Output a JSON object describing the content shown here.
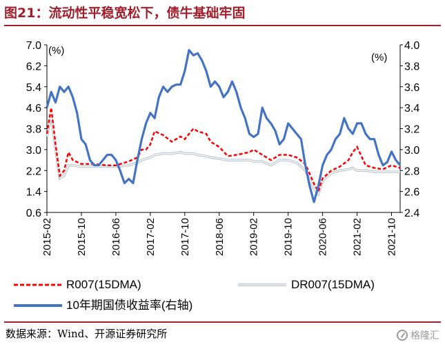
{
  "header": {
    "title": "图21：流动性平稳宽松下，债牛基础牢固"
  },
  "footer": {
    "source": "数据来源：Wind、开源证券研究所",
    "watermark": "格隆汇"
  },
  "colors": {
    "title": "#a11e2b",
    "r007": "#ff0000",
    "dr007": "#b7c6cf",
    "bond": "#4472c4"
  },
  "chart_data": {
    "type": "line",
    "left_unit": "(%)",
    "right_unit": "(%)",
    "y_left": {
      "min": 0.6,
      "max": 7.0,
      "ticks": [
        "7.0",
        "6.2",
        "5.4",
        "4.6",
        "3.8",
        "3.0",
        "2.2",
        "1.4",
        "0.6"
      ]
    },
    "y_right": {
      "min": 2.4,
      "max": 4.0,
      "ticks": [
        "4.0",
        "3.8",
        "3.6",
        "3.4",
        "3.2",
        "3.0",
        "2.8",
        "2.6",
        "2.4"
      ]
    },
    "x_ticks": [
      "2015-02",
      "2015-10",
      "2016-06",
      "2017-02",
      "2017-10",
      "2018-06",
      "2019-02",
      "2019-10",
      "2020-06",
      "2021-02",
      "2021-10"
    ],
    "x_range": [
      "2015-02",
      "2021-12"
    ],
    "series": [
      {
        "name": "R007(15DMA)",
        "axis": "left",
        "style": "dashed",
        "color": "#ff0000",
        "points": [
          [
            "2015-02",
            3.6
          ],
          [
            "2015-03",
            4.6
          ],
          [
            "2015-04",
            3.2
          ],
          [
            "2015-05",
            2.0
          ],
          [
            "2015-06",
            2.2
          ],
          [
            "2015-07",
            2.9
          ],
          [
            "2015-08",
            2.6
          ],
          [
            "2015-10",
            2.45
          ],
          [
            "2016-01",
            2.45
          ],
          [
            "2016-04",
            2.4
          ],
          [
            "2016-06",
            2.4
          ],
          [
            "2016-09",
            2.55
          ],
          [
            "2016-11",
            2.7
          ],
          [
            "2016-12",
            3.0
          ],
          [
            "2017-01",
            3.0
          ],
          [
            "2017-02",
            3.2
          ],
          [
            "2017-03",
            3.7
          ],
          [
            "2017-05",
            3.55
          ],
          [
            "2017-07",
            3.3
          ],
          [
            "2017-09",
            3.5
          ],
          [
            "2017-10",
            3.4
          ],
          [
            "2017-12",
            3.8
          ],
          [
            "2018-01",
            3.7
          ],
          [
            "2018-03",
            3.6
          ],
          [
            "2018-04",
            3.3
          ],
          [
            "2018-06",
            3.1
          ],
          [
            "2018-08",
            2.75
          ],
          [
            "2018-10",
            2.8
          ],
          [
            "2019-01",
            2.9
          ],
          [
            "2019-02",
            3.0
          ],
          [
            "2019-04",
            2.8
          ],
          [
            "2019-06",
            2.6
          ],
          [
            "2019-08",
            2.8
          ],
          [
            "2019-10",
            2.8
          ],
          [
            "2019-12",
            2.7
          ],
          [
            "2020-02",
            2.45
          ],
          [
            "2020-04",
            1.7
          ],
          [
            "2020-05",
            1.4
          ],
          [
            "2020-06",
            1.9
          ],
          [
            "2020-08",
            2.2
          ],
          [
            "2020-10",
            2.35
          ],
          [
            "2020-12",
            2.6
          ],
          [
            "2021-01",
            2.9
          ],
          [
            "2021-02",
            3.1
          ],
          [
            "2021-04",
            2.4
          ],
          [
            "2021-06",
            2.3
          ],
          [
            "2021-08",
            2.25
          ],
          [
            "2021-10",
            2.4
          ],
          [
            "2021-12",
            2.3
          ]
        ]
      },
      {
        "name": "DR007(15DMA)",
        "axis": "left",
        "style": "double",
        "color": "#b7c6cf",
        "points": [
          [
            "2015-02",
            3.5
          ],
          [
            "2015-03",
            4.3
          ],
          [
            "2015-04",
            3.0
          ],
          [
            "2015-05",
            1.9
          ],
          [
            "2015-06",
            2.0
          ],
          [
            "2015-07",
            2.4
          ],
          [
            "2015-08",
            2.4
          ],
          [
            "2015-10",
            2.35
          ],
          [
            "2016-01",
            2.35
          ],
          [
            "2016-04",
            2.35
          ],
          [
            "2016-06",
            2.35
          ],
          [
            "2016-09",
            2.4
          ],
          [
            "2016-11",
            2.5
          ],
          [
            "2016-12",
            2.6
          ],
          [
            "2017-01",
            2.65
          ],
          [
            "2017-02",
            2.7
          ],
          [
            "2017-03",
            2.8
          ],
          [
            "2017-05",
            2.85
          ],
          [
            "2017-07",
            2.85
          ],
          [
            "2017-09",
            2.9
          ],
          [
            "2017-10",
            2.85
          ],
          [
            "2017-12",
            2.85
          ],
          [
            "2018-01",
            2.8
          ],
          [
            "2018-03",
            2.75
          ],
          [
            "2018-04",
            2.7
          ],
          [
            "2018-06",
            2.65
          ],
          [
            "2018-08",
            2.6
          ],
          [
            "2018-10",
            2.6
          ],
          [
            "2019-01",
            2.6
          ],
          [
            "2019-02",
            2.55
          ],
          [
            "2019-04",
            2.55
          ],
          [
            "2019-06",
            2.4
          ],
          [
            "2019-08",
            2.6
          ],
          [
            "2019-10",
            2.6
          ],
          [
            "2019-12",
            2.5
          ],
          [
            "2020-02",
            2.2
          ],
          [
            "2020-04",
            1.5
          ],
          [
            "2020-05",
            1.3
          ],
          [
            "2020-06",
            1.8
          ],
          [
            "2020-08",
            2.1
          ],
          [
            "2020-10",
            2.2
          ],
          [
            "2020-12",
            2.25
          ],
          [
            "2021-01",
            2.3
          ],
          [
            "2021-02",
            2.2
          ],
          [
            "2021-04",
            2.2
          ],
          [
            "2021-06",
            2.15
          ],
          [
            "2021-08",
            2.15
          ],
          [
            "2021-10",
            2.15
          ],
          [
            "2021-12",
            2.15
          ]
        ]
      },
      {
        "name": "10年期国债收益率(右轴)",
        "axis": "right",
        "style": "solid",
        "color": "#4472c4",
        "points": [
          [
            "2015-02",
            3.4
          ],
          [
            "2015-03",
            3.55
          ],
          [
            "2015-04",
            3.45
          ],
          [
            "2015-05",
            3.6
          ],
          [
            "2015-06",
            3.55
          ],
          [
            "2015-07",
            3.6
          ],
          [
            "2015-08",
            3.5
          ],
          [
            "2015-09",
            3.35
          ],
          [
            "2015-10",
            3.1
          ],
          [
            "2015-11",
            3.05
          ],
          [
            "2015-12",
            2.9
          ],
          [
            "2016-01",
            2.85
          ],
          [
            "2016-02",
            2.85
          ],
          [
            "2016-03",
            2.9
          ],
          [
            "2016-04",
            2.95
          ],
          [
            "2016-05",
            2.95
          ],
          [
            "2016-06",
            2.9
          ],
          [
            "2016-07",
            2.8
          ],
          [
            "2016-08",
            2.68
          ],
          [
            "2016-09",
            2.72
          ],
          [
            "2016-10",
            2.68
          ],
          [
            "2016-11",
            2.9
          ],
          [
            "2016-12",
            3.1
          ],
          [
            "2017-01",
            3.25
          ],
          [
            "2017-02",
            3.35
          ],
          [
            "2017-03",
            3.3
          ],
          [
            "2017-04",
            3.5
          ],
          [
            "2017-05",
            3.6
          ],
          [
            "2017-06",
            3.55
          ],
          [
            "2017-07",
            3.6
          ],
          [
            "2017-08",
            3.62
          ],
          [
            "2017-09",
            3.62
          ],
          [
            "2017-10",
            3.75
          ],
          [
            "2017-11",
            3.95
          ],
          [
            "2017-12",
            3.9
          ],
          [
            "2018-01",
            3.92
          ],
          [
            "2018-02",
            3.85
          ],
          [
            "2018-03",
            3.75
          ],
          [
            "2018-04",
            3.6
          ],
          [
            "2018-05",
            3.65
          ],
          [
            "2018-06",
            3.6
          ],
          [
            "2018-07",
            3.5
          ],
          [
            "2018-08",
            3.55
          ],
          [
            "2018-09",
            3.65
          ],
          [
            "2018-10",
            3.55
          ],
          [
            "2018-11",
            3.4
          ],
          [
            "2018-12",
            3.3
          ],
          [
            "2019-01",
            3.15
          ],
          [
            "2019-02",
            3.12
          ],
          [
            "2019-03",
            3.15
          ],
          [
            "2019-04",
            3.4
          ],
          [
            "2019-05",
            3.3
          ],
          [
            "2019-06",
            3.25
          ],
          [
            "2019-07",
            3.18
          ],
          [
            "2019-08",
            3.05
          ],
          [
            "2019-09",
            3.1
          ],
          [
            "2019-10",
            3.25
          ],
          [
            "2019-11",
            3.2
          ],
          [
            "2019-12",
            3.15
          ],
          [
            "2020-01",
            3.1
          ],
          [
            "2020-02",
            2.85
          ],
          [
            "2020-03",
            2.65
          ],
          [
            "2020-04",
            2.5
          ],
          [
            "2020-05",
            2.65
          ],
          [
            "2020-06",
            2.85
          ],
          [
            "2020-07",
            2.95
          ],
          [
            "2020-08",
            3.0
          ],
          [
            "2020-09",
            3.1
          ],
          [
            "2020-10",
            3.15
          ],
          [
            "2020-11",
            3.3
          ],
          [
            "2020-12",
            3.2
          ],
          [
            "2021-01",
            3.15
          ],
          [
            "2021-02",
            3.25
          ],
          [
            "2021-03",
            3.25
          ],
          [
            "2021-04",
            3.15
          ],
          [
            "2021-05",
            3.1
          ],
          [
            "2021-06",
            3.1
          ],
          [
            "2021-07",
            2.95
          ],
          [
            "2021-08",
            2.85
          ],
          [
            "2021-09",
            2.88
          ],
          [
            "2021-10",
            2.98
          ],
          [
            "2021-11",
            2.9
          ],
          [
            "2021-12",
            2.85
          ]
        ]
      }
    ],
    "legend": [
      {
        "label": "R007(15DMA)",
        "style": "dashed"
      },
      {
        "label": "DR007(15DMA)",
        "style": "double"
      },
      {
        "label": "10年期国债收益率(右轴)",
        "style": "solid"
      }
    ],
    "legend_position": "bottom",
    "grid": false
  }
}
